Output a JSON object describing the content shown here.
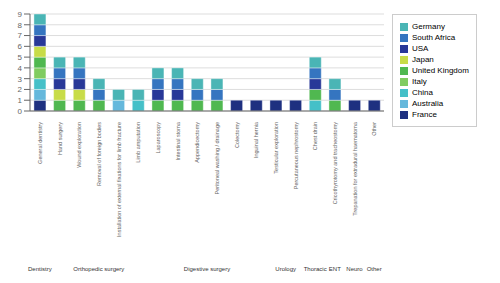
{
  "chart_data": {
    "type": "bar",
    "stacked": true,
    "grid": true,
    "legend": "right",
    "categories": [
      "General dentistry",
      "Hand surgery",
      "Wound exploration",
      "Removal of foreign bodies",
      "Installation of external fixations for limb fracture",
      "Limb amputation",
      "Laparoscopy",
      "Intestinal stoma",
      "Appendicectomy",
      "Peritoneal washing / drainage",
      "Colectomy",
      "Inguinal hernia",
      "Testicular exploration",
      "Percutaneous nephrostomy",
      "Chest drain",
      "Cricothyrotomy and tracheostomy",
      "Trepanation for extradural haematoma",
      "Other"
    ],
    "series": [
      {
        "name": "Germany",
        "color": "#4ab5b5",
        "values": [
          1,
          1,
          1,
          1,
          1,
          1,
          1,
          1,
          1,
          1,
          0,
          0,
          0,
          0,
          1,
          1,
          0,
          0
        ]
      },
      {
        "name": "South Africa",
        "color": "#3575c0",
        "values": [
          1,
          1,
          1,
          1,
          0,
          0,
          1,
          1,
          1,
          1,
          0,
          0,
          0,
          0,
          1,
          1,
          0,
          0
        ]
      },
      {
        "name": "USA",
        "color": "#283898",
        "values": [
          1,
          1,
          1,
          0,
          0,
          0,
          1,
          1,
          0,
          0,
          0,
          0,
          0,
          0,
          1,
          0,
          0,
          0
        ]
      },
      {
        "name": "Japan",
        "color": "#c8dc48",
        "values": [
          1,
          1,
          1,
          0,
          0,
          0,
          0,
          0,
          0,
          0,
          0,
          0,
          0,
          0,
          0,
          0,
          0,
          0
        ]
      },
      {
        "name": "United Kingdom",
        "color": "#50b850",
        "values": [
          1,
          1,
          1,
          1,
          0,
          0,
          1,
          1,
          1,
          1,
          0,
          0,
          0,
          0,
          1,
          1,
          0,
          0
        ]
      },
      {
        "name": "Italy",
        "color": "#80cc60",
        "values": [
          1,
          0,
          0,
          0,
          0,
          0,
          0,
          0,
          0,
          0,
          0,
          0,
          0,
          0,
          0,
          0,
          0,
          0
        ]
      },
      {
        "name": "China",
        "color": "#45c0c8",
        "values": [
          1,
          0,
          0,
          0,
          0,
          1,
          0,
          0,
          0,
          0,
          0,
          0,
          0,
          0,
          1,
          0,
          0,
          0
        ]
      },
      {
        "name": "Australia",
        "color": "#65b8dc",
        "values": [
          1,
          0,
          0,
          0,
          1,
          0,
          0,
          0,
          0,
          0,
          0,
          0,
          0,
          0,
          0,
          0,
          0,
          0
        ]
      },
      {
        "name": "France",
        "color": "#1e3080",
        "values": [
          1,
          0,
          0,
          0,
          0,
          0,
          0,
          0,
          0,
          0,
          1,
          1,
          1,
          1,
          0,
          0,
          1,
          1
        ]
      }
    ],
    "ylim": [
      0,
      9
    ],
    "yticks": [
      0,
      1,
      2,
      3,
      4,
      5,
      6,
      7,
      8,
      9
    ],
    "annotations": [
      {
        "text": "Dentistry",
        "from": "General dentistry",
        "to": "General dentistry"
      },
      {
        "text": "Orthopedic surgery",
        "from": "Hand surgery",
        "to": "Limb amputation"
      },
      {
        "text": "Digestive surgery",
        "from": "Laparoscopy",
        "to": "Inguinal hernia"
      },
      {
        "text": "Urology",
        "from": "Testicular exploration",
        "to": "Percutaneous nephrostomy"
      },
      {
        "text": "Thoracic",
        "from": "Chest drain",
        "to": "Chest drain"
      },
      {
        "text": "ENT",
        "from": "Cricothyrotomy and tracheostomy",
        "to": "Cricothyrotomy and tracheostomy"
      },
      {
        "text": "Neuro",
        "from": "Trepanation for extradural haematoma",
        "to": "Trepanation for extradural haematoma"
      },
      {
        "text": "Other",
        "from": "Other",
        "to": "Other"
      }
    ]
  }
}
